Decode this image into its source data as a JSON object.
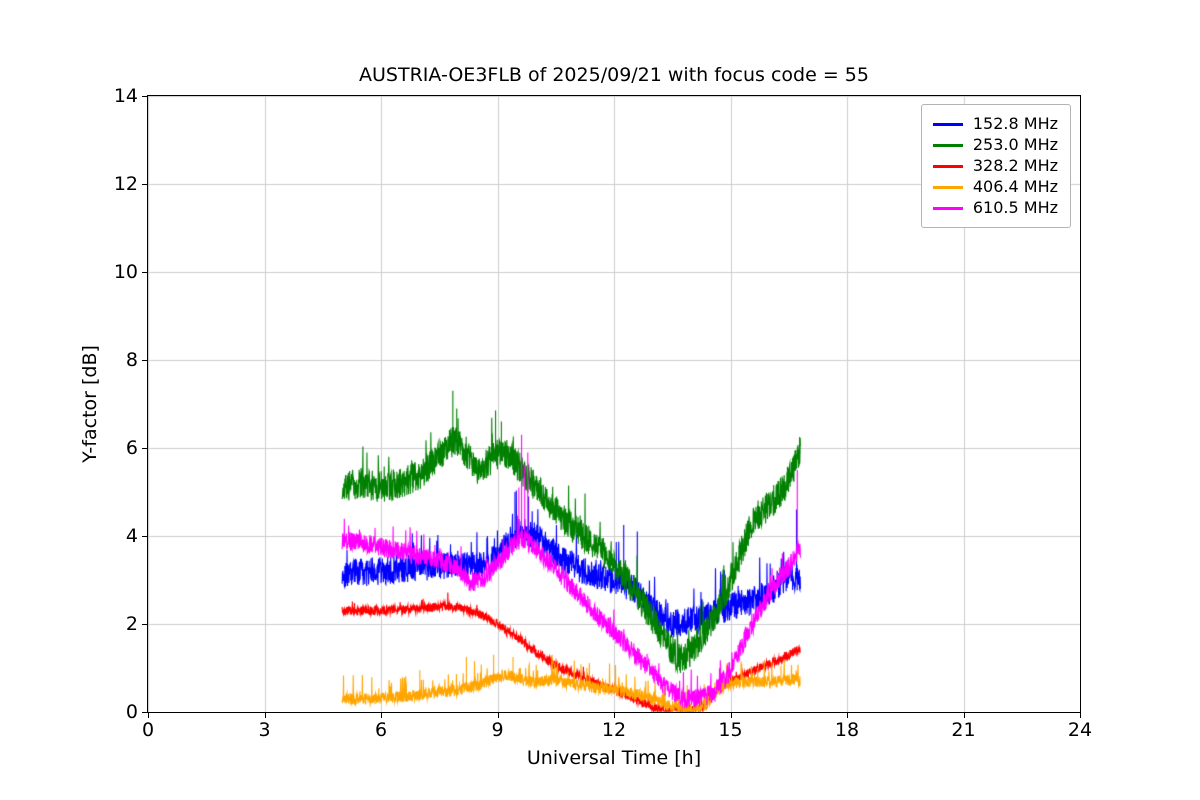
{
  "chart_data": {
    "type": "line",
    "title": "AUSTRIA-OE3FLB of 2025/09/21 with focus code = 55",
    "xlabel": "Universal Time [h]",
    "ylabel": "Y-factor [dB]",
    "xlim": [
      0,
      24
    ],
    "ylim": [
      0,
      14
    ],
    "xticks": [
      0,
      3,
      6,
      9,
      12,
      15,
      18,
      21,
      24
    ],
    "yticks": [
      0,
      2,
      4,
      6,
      8,
      10,
      12,
      14
    ],
    "grid": true,
    "grid_color": "#cccccc",
    "frame_color": "#000000",
    "background_color": "#ffffff",
    "legend": {
      "position": "upper right",
      "border_color": "#b3b3b3"
    },
    "data_time_range_hours": [
      5.0,
      16.8
    ],
    "series": [
      {
        "name": "152.8 MHz",
        "color": "#0000ff",
        "seed": 101,
        "noise": 0.32,
        "spike_prob": 0.05,
        "spike_amp": 0.8,
        "samples": 1700,
        "range": [
          5.0,
          16.8
        ],
        "keypoints": [
          [
            5.0,
            3.15
          ],
          [
            6.0,
            3.2
          ],
          [
            7.0,
            3.3
          ],
          [
            8.0,
            3.35
          ],
          [
            8.5,
            3.3
          ],
          [
            9.0,
            3.5
          ],
          [
            9.3,
            3.9
          ],
          [
            9.6,
            4.1
          ],
          [
            10.0,
            4.0
          ],
          [
            10.5,
            3.6
          ],
          [
            11.0,
            3.3
          ],
          [
            11.5,
            3.1
          ],
          [
            12.0,
            3.0
          ],
          [
            12.5,
            2.8
          ],
          [
            13.0,
            2.3
          ],
          [
            13.5,
            2.0
          ],
          [
            14.0,
            2.1
          ],
          [
            14.5,
            2.2
          ],
          [
            15.0,
            2.4
          ],
          [
            15.5,
            2.5
          ],
          [
            16.0,
            2.7
          ],
          [
            16.5,
            3.1
          ],
          [
            16.8,
            3.0
          ]
        ],
        "spikes": [
          [
            9.45,
            5.0
          ],
          [
            9.8,
            4.9
          ],
          [
            12.25,
            4.25
          ],
          [
            12.6,
            4.1
          ],
          [
            16.7,
            4.6
          ]
        ]
      },
      {
        "name": "253.0 MHz",
        "color": "#008000",
        "seed": 202,
        "noise": 0.35,
        "spike_prob": 0.04,
        "spike_amp": 0.7,
        "samples": 1700,
        "range": [
          5.0,
          16.8
        ],
        "keypoints": [
          [
            5.0,
            5.1
          ],
          [
            5.5,
            5.2
          ],
          [
            6.0,
            5.1
          ],
          [
            6.5,
            5.2
          ],
          [
            7.0,
            5.4
          ],
          [
            7.5,
            5.8
          ],
          [
            7.9,
            6.2
          ],
          [
            8.2,
            5.9
          ],
          [
            8.5,
            5.5
          ],
          [
            9.0,
            5.85
          ],
          [
            9.2,
            5.9
          ],
          [
            9.5,
            5.6
          ],
          [
            10.0,
            5.1
          ],
          [
            10.5,
            4.6
          ],
          [
            11.0,
            4.15
          ],
          [
            11.5,
            3.8
          ],
          [
            12.0,
            3.4
          ],
          [
            12.5,
            2.8
          ],
          [
            13.0,
            2.1
          ],
          [
            13.4,
            1.5
          ],
          [
            13.7,
            1.2
          ],
          [
            14.0,
            1.4
          ],
          [
            14.5,
            2.0
          ],
          [
            15.0,
            3.0
          ],
          [
            15.3,
            3.7
          ],
          [
            15.6,
            4.4
          ],
          [
            16.0,
            4.7
          ],
          [
            16.4,
            5.1
          ],
          [
            16.8,
            5.9
          ]
        ],
        "spikes": [
          [
            7.85,
            7.3
          ],
          [
            7.95,
            6.9
          ],
          [
            8.95,
            6.85
          ],
          [
            9.1,
            6.6
          ],
          [
            16.78,
            6.25
          ]
        ]
      },
      {
        "name": "328.2 MHz",
        "color": "#ff0000",
        "seed": 303,
        "noise": 0.1,
        "spike_prob": 0.02,
        "spike_amp": 0.25,
        "samples": 1700,
        "range": [
          5.0,
          16.8
        ],
        "keypoints": [
          [
            5.0,
            2.3
          ],
          [
            6.0,
            2.3
          ],
          [
            7.0,
            2.35
          ],
          [
            7.5,
            2.4
          ],
          [
            8.0,
            2.38
          ],
          [
            8.5,
            2.25
          ],
          [
            9.0,
            2.0
          ],
          [
            9.5,
            1.7
          ],
          [
            10.0,
            1.35
          ],
          [
            10.5,
            1.05
          ],
          [
            11.0,
            0.85
          ],
          [
            11.5,
            0.68
          ],
          [
            12.0,
            0.5
          ],
          [
            12.5,
            0.3
          ],
          [
            13.0,
            0.12
          ],
          [
            13.3,
            0.05
          ],
          [
            14.0,
            0.05
          ],
          [
            14.3,
            0.15
          ],
          [
            14.6,
            0.45
          ],
          [
            15.0,
            0.7
          ],
          [
            15.5,
            0.9
          ],
          [
            16.0,
            1.1
          ],
          [
            16.4,
            1.25
          ],
          [
            16.8,
            1.45
          ]
        ],
        "spikes": []
      },
      {
        "name": "406.4 MHz",
        "color": "#ffa500",
        "seed": 404,
        "noise": 0.13,
        "spike_prob": 0.08,
        "spike_amp": 0.5,
        "samples": 1700,
        "range": [
          5.0,
          16.8
        ],
        "keypoints": [
          [
            5.0,
            0.3
          ],
          [
            6.0,
            0.3
          ],
          [
            7.0,
            0.38
          ],
          [
            7.5,
            0.45
          ],
          [
            8.0,
            0.5
          ],
          [
            8.5,
            0.6
          ],
          [
            9.0,
            0.8
          ],
          [
            9.3,
            0.85
          ],
          [
            9.7,
            0.7
          ],
          [
            10.0,
            0.68
          ],
          [
            10.5,
            0.72
          ],
          [
            11.0,
            0.62
          ],
          [
            11.5,
            0.55
          ],
          [
            12.0,
            0.5
          ],
          [
            12.5,
            0.42
          ],
          [
            13.0,
            0.3
          ],
          [
            13.4,
            0.15
          ],
          [
            13.8,
            0.05
          ],
          [
            14.2,
            0.05
          ],
          [
            14.5,
            0.3
          ],
          [
            14.8,
            0.6
          ],
          [
            15.0,
            0.65
          ],
          [
            15.5,
            0.7
          ],
          [
            16.0,
            0.68
          ],
          [
            16.5,
            0.72
          ],
          [
            16.8,
            0.7
          ]
        ],
        "spikes": [
          [
            7.0,
            0.95
          ],
          [
            8.2,
            1.25
          ],
          [
            8.9,
            1.3
          ],
          [
            9.4,
            1.25
          ],
          [
            10.4,
            1.15
          ],
          [
            11.3,
            1.0
          ],
          [
            14.9,
            1.05
          ],
          [
            15.7,
            1.0
          ],
          [
            16.3,
            1.05
          ]
        ]
      },
      {
        "name": "610.5 MHz",
        "color": "#ff00ff",
        "seed": 505,
        "noise": 0.22,
        "spike_prob": 0.04,
        "spike_amp": 0.5,
        "samples": 1700,
        "range": [
          5.0,
          16.8
        ],
        "keypoints": [
          [
            5.0,
            3.9
          ],
          [
            5.5,
            3.85
          ],
          [
            6.0,
            3.75
          ],
          [
            6.5,
            3.65
          ],
          [
            7.0,
            3.55
          ],
          [
            7.5,
            3.45
          ],
          [
            8.0,
            3.25
          ],
          [
            8.3,
            2.95
          ],
          [
            8.6,
            3.0
          ],
          [
            9.0,
            3.35
          ],
          [
            9.4,
            3.8
          ],
          [
            9.7,
            3.95
          ],
          [
            10.0,
            3.7
          ],
          [
            10.5,
            3.25
          ],
          [
            11.0,
            2.75
          ],
          [
            11.5,
            2.25
          ],
          [
            12.0,
            1.8
          ],
          [
            12.5,
            1.35
          ],
          [
            13.0,
            0.9
          ],
          [
            13.4,
            0.5
          ],
          [
            13.8,
            0.3
          ],
          [
            14.2,
            0.3
          ],
          [
            14.6,
            0.45
          ],
          [
            15.0,
            0.95
          ],
          [
            15.4,
            1.7
          ],
          [
            15.8,
            2.4
          ],
          [
            16.2,
            2.95
          ],
          [
            16.5,
            3.3
          ],
          [
            16.8,
            3.7
          ]
        ],
        "spikes": [
          [
            9.55,
            5.1
          ],
          [
            9.62,
            6.3
          ],
          [
            9.7,
            5.6
          ],
          [
            9.78,
            5.9
          ],
          [
            16.72,
            5.5
          ]
        ]
      }
    ]
  }
}
